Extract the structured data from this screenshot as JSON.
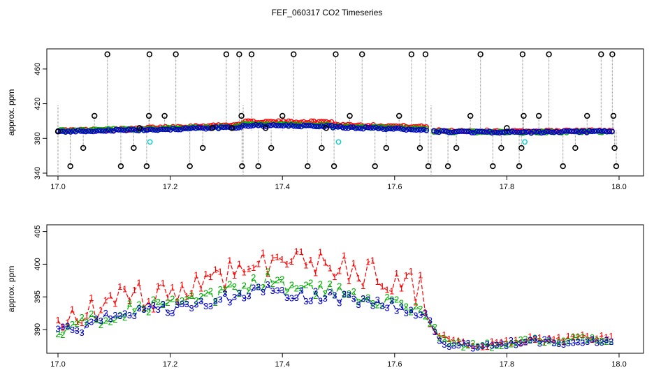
{
  "title": "FEF_060317  CO2 Timeseries",
  "chart_data": [
    {
      "type": "scatter",
      "ylabel": "approx. ppm",
      "xlim": [
        17.0,
        18.0
      ],
      "ylim": [
        340,
        480
      ],
      "xticks": [
        "17.0",
        "17.2",
        "17.4",
        "17.6",
        "17.8",
        "18.0"
      ],
      "yticks": [
        "340",
        "380",
        "420",
        "460"
      ],
      "series": [
        {
          "color": "#ff0000",
          "segments": [
            {
              "x0": 17.0,
              "x1": 17.16,
              "y0": 389,
              "y1": 391
            },
            {
              "x0": 17.16,
              "x1": 17.33,
              "y0": 392,
              "y1": 396
            },
            {
              "x0": 17.33,
              "x1": 17.49,
              "y0": 399,
              "y1": 399
            },
            {
              "x0": 17.49,
              "x1": 17.66,
              "y0": 396,
              "y1": 393
            },
            {
              "x0": 17.67,
              "x1": 17.83,
              "y0": 389,
              "y1": 388
            },
            {
              "x0": 17.83,
              "x1": 17.99,
              "y0": 388,
              "y1": 389
            }
          ]
        },
        {
          "color": "#00b000",
          "segments": [
            {
              "x0": 17.0,
              "x1": 17.16,
              "y0": 389,
              "y1": 391
            },
            {
              "x0": 17.16,
              "x1": 17.33,
              "y0": 391,
              "y1": 394
            },
            {
              "x0": 17.33,
              "x1": 17.49,
              "y0": 396,
              "y1": 395
            },
            {
              "x0": 17.49,
              "x1": 17.66,
              "y0": 394,
              "y1": 391
            },
            {
              "x0": 17.67,
              "x1": 17.83,
              "y0": 388,
              "y1": 387
            },
            {
              "x0": 17.83,
              "x1": 17.99,
              "y0": 387,
              "y1": 388
            }
          ]
        },
        {
          "color": "#0000cc",
          "segments": [
            {
              "x0": 17.0,
              "x1": 17.16,
              "y0": 388,
              "y1": 390
            },
            {
              "x0": 17.16,
              "x1": 17.33,
              "y0": 390,
              "y1": 393
            },
            {
              "x0": 17.33,
              "x1": 17.49,
              "y0": 395,
              "y1": 394
            },
            {
              "x0": 17.49,
              "x1": 17.66,
              "y0": 393,
              "y1": 390
            },
            {
              "x0": 17.67,
              "x1": 17.83,
              "y0": 388,
              "y1": 387
            },
            {
              "x0": 17.83,
              "x1": 17.99,
              "y0": 387,
              "y1": 388
            }
          ]
        }
      ],
      "outliers": [
        [
          17.0,
          388
        ],
        [
          17.022,
          348
        ],
        [
          17.045,
          369
        ],
        [
          17.065,
          406
        ],
        [
          17.088,
          477
        ],
        [
          17.112,
          348
        ],
        [
          17.135,
          369
        ],
        [
          17.145,
          392
        ],
        [
          17.158,
          348
        ],
        [
          17.162,
          406
        ],
        [
          17.163,
          477
        ],
        [
          17.19,
          406
        ],
        [
          17.21,
          477
        ],
        [
          17.235,
          348
        ],
        [
          17.258,
          369
        ],
        [
          17.275,
          392
        ],
        [
          17.3,
          477
        ],
        [
          17.31,
          392
        ],
        [
          17.323,
          477
        ],
        [
          17.327,
          406
        ],
        [
          17.328,
          348
        ],
        [
          17.345,
          477
        ],
        [
          17.357,
          348
        ],
        [
          17.37,
          392
        ],
        [
          17.38,
          369
        ],
        [
          17.4,
          406
        ],
        [
          17.42,
          477
        ],
        [
          17.445,
          348
        ],
        [
          17.47,
          369
        ],
        [
          17.478,
          392
        ],
        [
          17.492,
          348
        ],
        [
          17.495,
          477
        ],
        [
          17.52,
          406
        ],
        [
          17.542,
          477
        ],
        [
          17.565,
          348
        ],
        [
          17.585,
          369
        ],
        [
          17.608,
          406
        ],
        [
          17.63,
          477
        ],
        [
          17.645,
          369
        ],
        [
          17.655,
          477
        ],
        [
          17.66,
          348
        ],
        [
          17.695,
          348
        ],
        [
          17.71,
          369
        ],
        [
          17.735,
          406
        ],
        [
          17.753,
          477
        ],
        [
          17.775,
          348
        ],
        [
          17.79,
          369
        ],
        [
          17.8,
          392
        ],
        [
          17.822,
          348
        ],
        [
          17.826,
          369
        ],
        [
          17.828,
          477
        ],
        [
          17.83,
          406
        ],
        [
          17.857,
          406
        ],
        [
          17.875,
          477
        ],
        [
          17.9,
          348
        ],
        [
          17.922,
          369
        ],
        [
          17.943,
          406
        ],
        [
          17.968,
          477
        ],
        [
          17.988,
          477
        ],
        [
          17.99,
          406
        ],
        [
          17.992,
          369
        ],
        [
          17.995,
          348
        ]
      ],
      "cyan_points": [
        [
          17.164,
          376
        ],
        [
          17.5,
          376
        ],
        [
          17.832,
          376
        ]
      ]
    },
    {
      "type": "line",
      "ylabel": "approx. ppm",
      "xlim": [
        17.0,
        18.0
      ],
      "ylim": [
        386.8,
        405.6
      ],
      "xticks": [
        "17.0",
        "17.2",
        "17.4",
        "17.6",
        "17.8",
        "18.0"
      ],
      "yticks": [
        "390",
        "395",
        "400",
        "405"
      ],
      "x": [
        17.0,
        17.03,
        17.06,
        17.09,
        17.12,
        17.15,
        17.18,
        17.21,
        17.24,
        17.27,
        17.3,
        17.33,
        17.36,
        17.38,
        17.41,
        17.44,
        17.47,
        17.5,
        17.53,
        17.56,
        17.59,
        17.62,
        17.65,
        17.67,
        17.69,
        17.72,
        17.75,
        17.78,
        17.81,
        17.84,
        17.87,
        17.9,
        17.93,
        17.96,
        17.99
      ],
      "series": [
        {
          "name": "1",
          "color": "#ff0000",
          "values": [
            390.0,
            391.5,
            393.0,
            393.8,
            394.5,
            395.0,
            395.5,
            396.0,
            396.5,
            397.5,
            398.5,
            399.5,
            400.5,
            401.0,
            400.2,
            400.0,
            400.3,
            399.5,
            399.0,
            398.5,
            398.0,
            397.0,
            396.0,
            391.5,
            388.2,
            387.7,
            387.6,
            387.8,
            388.2,
            388.5,
            388.4,
            388.5,
            388.8,
            388.6,
            388.8
          ]
        },
        {
          "name": "2",
          "color": "#00b000",
          "values": [
            389.6,
            390.2,
            391.3,
            392.2,
            393.0,
            393.6,
            393.6,
            393.8,
            394.0,
            394.6,
            395.6,
            396.3,
            397.2,
            398.0,
            396.6,
            396.0,
            396.2,
            395.6,
            395.3,
            394.9,
            394.5,
            393.6,
            393.0,
            390.6,
            388.0,
            387.6,
            387.5,
            387.6,
            388.0,
            388.3,
            388.2,
            388.2,
            388.5,
            388.3,
            388.4
          ]
        },
        {
          "name": "3",
          "color": "#0000cc",
          "values": [
            389.4,
            389.8,
            390.8,
            391.8,
            392.5,
            393.0,
            393.0,
            393.2,
            393.4,
            394.0,
            394.8,
            395.2,
            395.8,
            396.4,
            395.4,
            395.0,
            395.2,
            394.8,
            394.5,
            394.1,
            393.8,
            392.8,
            392.2,
            390.2,
            388.0,
            387.5,
            387.4,
            387.5,
            387.9,
            388.2,
            388.1,
            388.1,
            388.3,
            388.2,
            388.3
          ]
        }
      ]
    }
  ]
}
